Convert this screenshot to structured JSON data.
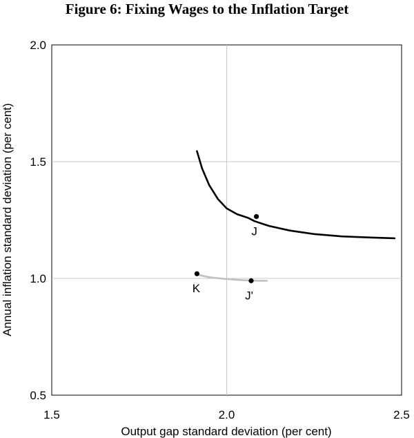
{
  "chart_data": {
    "type": "line",
    "title": "Figure 6: Fixing Wages to the Inflation Target",
    "xlabel": "Output gap standard deviation (per cent)",
    "ylabel": "Annual inflation standard deviation (per cent)",
    "xlim": [
      1.5,
      2.5
    ],
    "ylim": [
      0.5,
      2.0
    ],
    "x_ticks": [
      "1.5",
      "2.0",
      "2.5"
    ],
    "y_ticks": [
      "0.5",
      "1.0",
      "1.5",
      "2.0"
    ],
    "grid": true,
    "series": [
      {
        "color": "#000000",
        "points": [
          [
            1.915,
            1.545
          ],
          [
            1.93,
            1.47
          ],
          [
            1.95,
            1.4
          ],
          [
            1.975,
            1.34
          ],
          [
            2.0,
            1.3
          ],
          [
            2.03,
            1.275
          ],
          [
            2.06,
            1.26
          ],
          [
            2.08,
            1.245
          ],
          [
            2.12,
            1.225
          ],
          [
            2.18,
            1.205
          ],
          [
            2.25,
            1.19
          ],
          [
            2.33,
            1.18
          ],
          [
            2.42,
            1.175
          ],
          [
            2.48,
            1.172
          ]
        ]
      },
      {
        "color": "#c0c0c0",
        "points": [
          [
            1.915,
            1.017
          ],
          [
            1.95,
            1.005
          ],
          [
            2.0,
            0.997
          ],
          [
            2.05,
            0.992
          ],
          [
            2.09,
            0.99
          ],
          [
            2.115,
            0.99
          ]
        ]
      }
    ],
    "points": [
      {
        "label": "J",
        "x": 2.085,
        "y": 1.265
      },
      {
        "label": "K",
        "x": 1.915,
        "y": 1.02
      },
      {
        "label": "J'",
        "x": 2.07,
        "y": 0.99
      }
    ]
  }
}
